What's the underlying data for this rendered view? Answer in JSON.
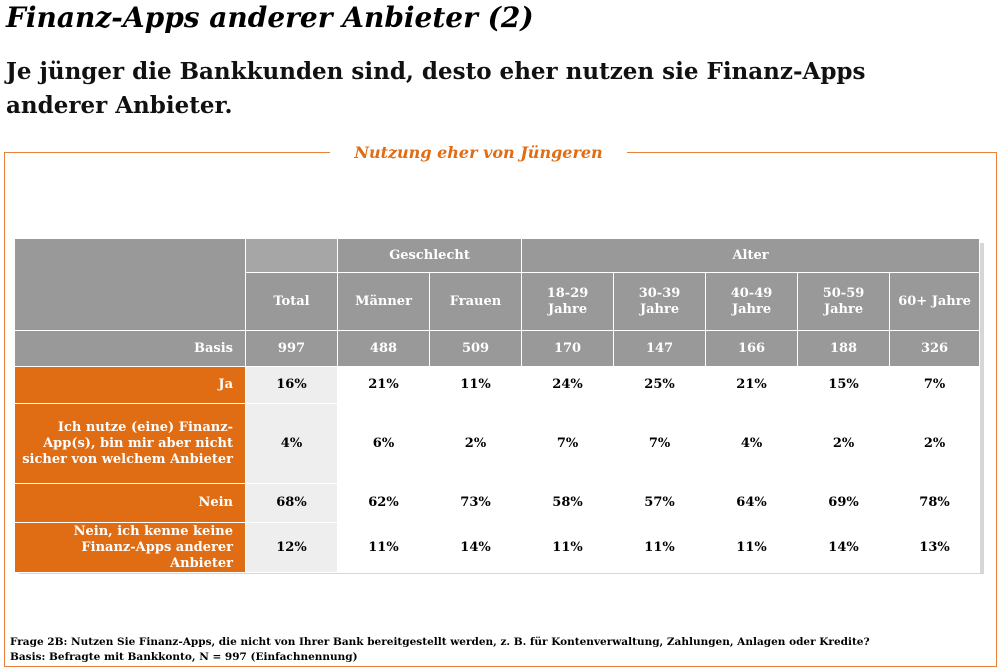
{
  "title": "Finanz-Apps anderer Anbieter (2)",
  "subtitle": "Je jünger die Bankkunden sind, desto eher nutzen sie Finanz-Apps anderer Anbieter.",
  "frame_caption": "Nutzung eher von Jüngeren",
  "table": {
    "group_headers": {
      "gender": "Geschlecht",
      "age": "Alter"
    },
    "columns": [
      "Total",
      "Männer",
      "Frauen",
      "18-29 Jahre",
      "30-39 Jahre",
      "40-49 Jahre",
      "50-59 Jahre",
      "60+ Jahre"
    ],
    "basis": {
      "label": "Basis",
      "values": [
        "997",
        "488",
        "509",
        "170",
        "147",
        "166",
        "188",
        "326"
      ]
    },
    "rows": [
      {
        "label": "Ja",
        "values": [
          "16%",
          "21%",
          "11%",
          "24%",
          "25%",
          "21%",
          "15%",
          "7%"
        ]
      },
      {
        "label": "Ich nutze (eine) Finanz-App(s), bin mir aber nicht sicher von welchem Anbieter",
        "values": [
          "4%",
          "6%",
          "2%",
          "7%",
          "7%",
          "4%",
          "2%",
          "2%"
        ]
      },
      {
        "label": "Nein",
        "values": [
          "68%",
          "62%",
          "73%",
          "58%",
          "57%",
          "64%",
          "69%",
          "78%"
        ]
      },
      {
        "label": "Nein, ich kenne keine Finanz-Apps anderer Anbieter",
        "values": [
          "12%",
          "11%",
          "14%",
          "11%",
          "11%",
          "11%",
          "14%",
          "13%"
        ]
      }
    ]
  },
  "footnote": {
    "question": "Frage 2B: Nutzen Sie Finanz-Apps, die nicht von Ihrer Bank bereitgestellt werden, z. B. für Kontenverwaltung, Zahlungen, Anlagen oder Kredite?",
    "basis": "Basis: Befragte mit Bankkonto, N = 997 (Einfachnennung)"
  },
  "colors": {
    "accent_orange": "#e06c13",
    "frame_orange": "#e8823a",
    "header_grey": "#999999",
    "total_column_bg": "#eeeeee"
  }
}
